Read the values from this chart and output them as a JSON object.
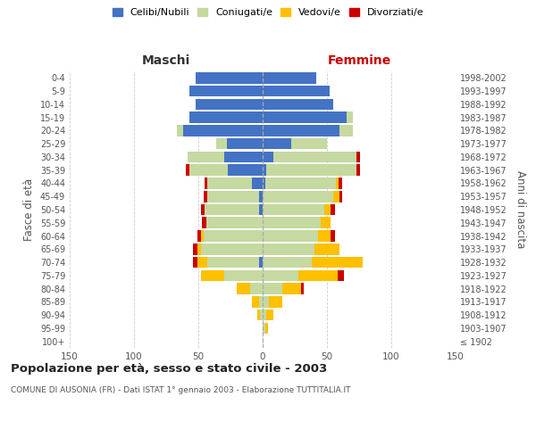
{
  "age_groups": [
    "100+",
    "95-99",
    "90-94",
    "85-89",
    "80-84",
    "75-79",
    "70-74",
    "65-69",
    "60-64",
    "55-59",
    "50-54",
    "45-49",
    "40-44",
    "35-39",
    "30-34",
    "25-29",
    "20-24",
    "15-19",
    "10-14",
    "5-9",
    "0-4"
  ],
  "birth_years": [
    "≤ 1902",
    "1903-1907",
    "1908-1912",
    "1913-1917",
    "1918-1922",
    "1923-1927",
    "1928-1932",
    "1933-1937",
    "1938-1942",
    "1943-1947",
    "1948-1952",
    "1953-1957",
    "1958-1962",
    "1963-1967",
    "1968-1972",
    "1973-1977",
    "1978-1982",
    "1983-1987",
    "1988-1992",
    "1993-1997",
    "1998-2002"
  ],
  "males": {
    "celibi": [
      0,
      0,
      0,
      0,
      0,
      0,
      3,
      0,
      0,
      0,
      3,
      3,
      8,
      27,
      30,
      28,
      62,
      57,
      52,
      57,
      52
    ],
    "coniugati": [
      0,
      0,
      2,
      3,
      10,
      30,
      40,
      48,
      46,
      44,
      42,
      40,
      35,
      30,
      28,
      8,
      5,
      0,
      0,
      0,
      0
    ],
    "vedovi": [
      0,
      0,
      2,
      5,
      10,
      18,
      8,
      3,
      2,
      0,
      0,
      0,
      0,
      0,
      0,
      0,
      0,
      0,
      0,
      0,
      0
    ],
    "divorziati": [
      0,
      0,
      0,
      0,
      0,
      0,
      3,
      3,
      3,
      3,
      3,
      3,
      2,
      3,
      0,
      0,
      0,
      0,
      0,
      0,
      0
    ]
  },
  "females": {
    "nubili": [
      0,
      0,
      0,
      0,
      0,
      0,
      0,
      0,
      0,
      0,
      0,
      0,
      2,
      3,
      8,
      22,
      60,
      65,
      55,
      52,
      42
    ],
    "coniugate": [
      0,
      2,
      3,
      5,
      15,
      28,
      38,
      40,
      43,
      45,
      48,
      55,
      55,
      70,
      65,
      28,
      10,
      5,
      0,
      0,
      0
    ],
    "vedove": [
      0,
      2,
      5,
      10,
      15,
      30,
      40,
      20,
      10,
      8,
      5,
      5,
      2,
      0,
      0,
      0,
      0,
      0,
      0,
      0,
      0
    ],
    "divorziate": [
      0,
      0,
      0,
      0,
      2,
      5,
      0,
      0,
      3,
      0,
      3,
      2,
      3,
      3,
      3,
      0,
      0,
      0,
      0,
      0,
      0
    ]
  },
  "colors": {
    "celibi": "#4472c4",
    "coniugati": "#c5d9a0",
    "vedovi": "#ffc000",
    "divorziati": "#cc0000"
  },
  "xlim": 150,
  "title": "Popolazione per età, sesso e stato civile - 2003",
  "subtitle": "COMUNE DI AUSONIA (FR) - Dati ISTAT 1° gennaio 2003 - Elaborazione TUTTITALIA.IT",
  "legend_labels": [
    "Celibi/Nubili",
    "Coniugati/e",
    "Vedovi/e",
    "Divorziati/e"
  ],
  "ylabel_left": "Fasce di età",
  "ylabel_right": "Anni di nascita",
  "header_left": "Maschi",
  "header_right": "Femmine",
  "bg_color": "#ffffff",
  "grid_color": "#cccccc",
  "text_color": "#555555",
  "header_color_left": "#333333",
  "header_color_right": "#cc0000"
}
